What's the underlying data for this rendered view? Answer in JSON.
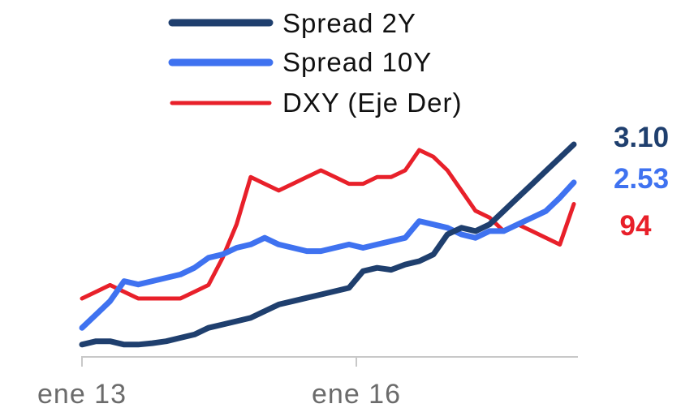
{
  "chart_data": {
    "type": "line",
    "title": "",
    "xlabel": "",
    "ylabel": "",
    "x_ticks": [
      "ene 13",
      "ene 16"
    ],
    "legend": {
      "position": "top-center"
    },
    "grid": false,
    "x": [
      "2013-01",
      "2013-03",
      "2013-05",
      "2013-07",
      "2013-09",
      "2013-11",
      "2014-01",
      "2014-03",
      "2014-05",
      "2014-07",
      "2014-09",
      "2014-11",
      "2015-01",
      "2015-03",
      "2015-05",
      "2015-07",
      "2015-09",
      "2015-11",
      "2016-01",
      "2016-03",
      "2016-05",
      "2016-07",
      "2016-09",
      "2016-11",
      "2017-01",
      "2017-03",
      "2017-05",
      "2017-07",
      "2017-09",
      "2017-11",
      "2018-01",
      "2018-03",
      "2018-05",
      "2018-07",
      "2018-09",
      "2018-11"
    ],
    "series": [
      {
        "name": "Spread 2Y",
        "color": "#1f3f6e",
        "axis": "left",
        "end_label": "3.10",
        "values": [
          0.1,
          0.15,
          0.15,
          0.1,
          0.1,
          0.12,
          0.15,
          0.2,
          0.25,
          0.35,
          0.4,
          0.45,
          0.5,
          0.6,
          0.7,
          0.75,
          0.8,
          0.85,
          0.9,
          0.95,
          1.2,
          1.25,
          1.22,
          1.3,
          1.35,
          1.45,
          1.75,
          1.85,
          1.8,
          1.9,
          2.1,
          2.3,
          2.5,
          2.7,
          2.9,
          3.1
        ]
      },
      {
        "name": "Spread 10Y",
        "color": "#3f72f0",
        "axis": "left",
        "end_label": "2.53",
        "values": [
          0.35,
          0.55,
          0.75,
          1.05,
          1.0,
          1.05,
          1.1,
          1.15,
          1.25,
          1.4,
          1.45,
          1.55,
          1.6,
          1.7,
          1.6,
          1.55,
          1.5,
          1.5,
          1.55,
          1.6,
          1.55,
          1.6,
          1.65,
          1.7,
          1.95,
          1.9,
          1.85,
          1.75,
          1.7,
          1.8,
          1.8,
          1.9,
          2.0,
          2.1,
          2.3,
          2.53
        ]
      },
      {
        "name": "DXY (Eje Der)",
        "color": "#e8202a",
        "axis": "right",
        "end_label": "94",
        "values": [
          80,
          81,
          82,
          81,
          80,
          80,
          80,
          80,
          81,
          82,
          86,
          91,
          98,
          97,
          96,
          97,
          98,
          99,
          98,
          97,
          97,
          98,
          98,
          99,
          102,
          101,
          99,
          96,
          93,
          92,
          90,
          91,
          90,
          89,
          88,
          94
        ]
      }
    ]
  }
}
